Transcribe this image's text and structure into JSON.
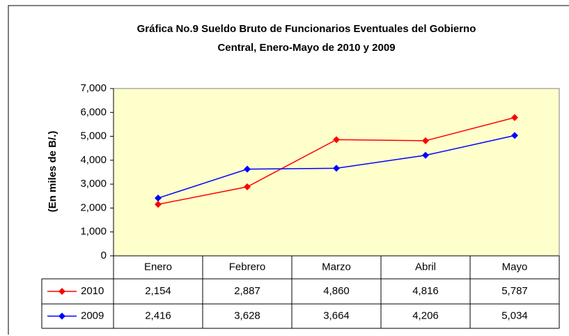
{
  "chart_data": {
    "type": "line",
    "title": "Gráfica No.9 Sueldo Bruto de Funcionarios Eventuales del Gobierno",
    "subtitle": "Central, Enero-Mayo de 2010 y 2009",
    "y_label": "(En miles de B/.)",
    "categories": [
      "Enero",
      "Febrero",
      "Marzo",
      "Abril",
      "Mayo"
    ],
    "series": [
      {
        "name": "2010",
        "color": "#ff0000",
        "values": [
          2154,
          2887,
          4860,
          4816,
          5787
        ],
        "value_labels": [
          "2,154",
          "2,887",
          "4,860",
          "4,816",
          "5,787"
        ]
      },
      {
        "name": "2009",
        "color": "#0000ff",
        "values": [
          2416,
          3628,
          3664,
          4206,
          5034
        ],
        "value_labels": [
          "2,416",
          "3,628",
          "3,664",
          "4,206",
          "5,034"
        ]
      }
    ],
    "ylim": [
      0,
      7000
    ],
    "yticks": [
      0,
      {
        "value": 1000,
        "label": "1,000"
      },
      {
        "value": 2000,
        "label": "2,000"
      },
      {
        "value": 3000,
        "label": "3,000"
      },
      {
        "value": 4000,
        "label": "4,000"
      },
      {
        "value": 5000,
        "label": "5,000"
      },
      {
        "value": 6000,
        "label": "6,000"
      },
      {
        "value": 7000,
        "label": "7,000"
      }
    ],
    "grid": false,
    "plot_background": "#ffffcc"
  }
}
